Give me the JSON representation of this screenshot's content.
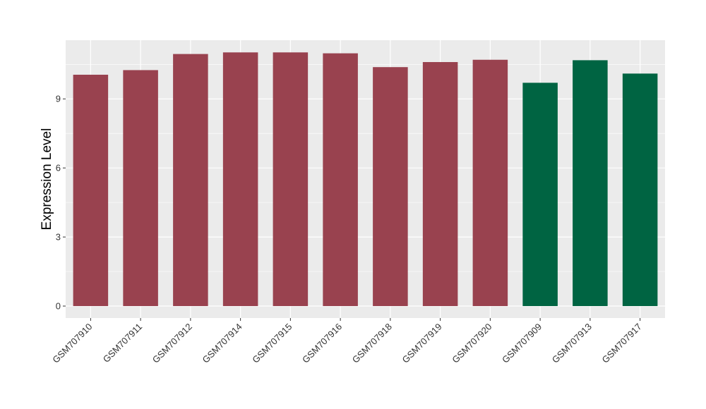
{
  "chart_data": {
    "type": "bar",
    "title": "",
    "xlabel": "",
    "ylabel": "Expression Level",
    "categories": [
      "GSM707910",
      "GSM707911",
      "GSM707912",
      "GSM707914",
      "GSM707915",
      "GSM707916",
      "GSM707918",
      "GSM707919",
      "GSM707920",
      "GSM707909",
      "GSM707913",
      "GSM707917"
    ],
    "values": [
      10.05,
      10.25,
      10.95,
      11.02,
      11.02,
      10.98,
      10.38,
      10.6,
      10.7,
      9.7,
      10.68,
      10.1
    ],
    "bar_colors": [
      "#99424f",
      "#99424f",
      "#99424f",
      "#99424f",
      "#99424f",
      "#99424f",
      "#99424f",
      "#99424f",
      "#99424f",
      "#006442",
      "#006442",
      "#006442"
    ],
    "ylim": [
      -0.52,
      11.55
    ],
    "yticks": [
      0,
      3,
      6,
      9
    ],
    "ytick_labels": [
      "0",
      "3",
      "6",
      "9"
    ],
    "grid": true,
    "panel_background": "#ebebeb",
    "grid_color": "#ffffff"
  }
}
